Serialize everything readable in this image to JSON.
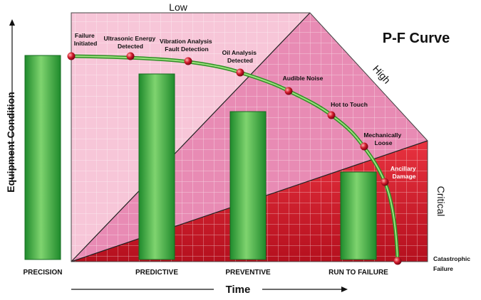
{
  "title": "P-F Curve",
  "axes": {
    "y_label": "Equipment Condition",
    "x_label": "Time"
  },
  "zones": {
    "low": "Low",
    "high": "High",
    "critical": "Critical"
  },
  "points": [
    {
      "line1": "Failure",
      "line2": "Initiated"
    },
    {
      "line1": "Ultrasonic Energy",
      "line2": "Detected"
    },
    {
      "line1": "Vibration Analysis",
      "line2": "Fault Detection"
    },
    {
      "line1": "Oil Analysis",
      "line2": "Detected"
    },
    {
      "line1": "Audible Noise",
      "line2": ""
    },
    {
      "line1": "Hot to Touch",
      "line2": ""
    },
    {
      "line1": "Mechanically",
      "line2": "Loose"
    },
    {
      "line1": "Ancillary",
      "line2": "Damage"
    },
    {
      "line1": "Catastrophic",
      "line2": "Failure"
    }
  ],
  "categories": [
    "PRECISION",
    "PREDICTIVE",
    "PREVENTIVE",
    "RUN TO FAILURE"
  ],
  "colors": {
    "low_zone": "#f7c6d8",
    "high_zone": "#e88bb4",
    "critical_zone": "#d81f2e",
    "bar": "#3cb043",
    "curve": "#5fc44a",
    "marker": "#c8102e"
  }
}
